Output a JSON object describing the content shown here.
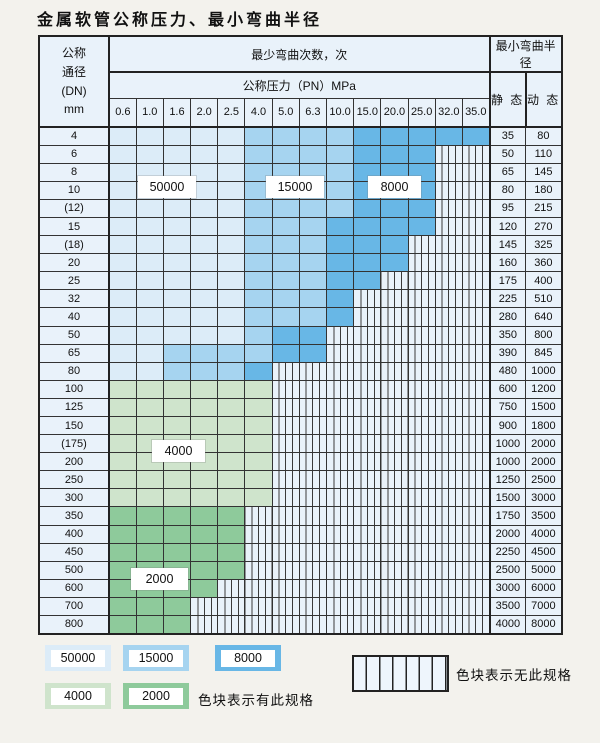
{
  "title": "金属软管公称压力、最小弯曲半径",
  "table": {
    "dn_header": "公称\n通径\n(DN)\nmm",
    "cycles_header": "最少弯曲次数，次",
    "radius_header": "最小弯曲半径",
    "pressure_header": "公称压力（PN）MPa",
    "static_header": "静 态",
    "dynamic_header": "动 态",
    "pressures": [
      "0.6",
      "1.0",
      "1.6",
      "2.0",
      "2.5",
      "4.0",
      "5.0",
      "6.3",
      "10.0",
      "15.0",
      "20.0",
      "25.0",
      "32.0",
      "35.0"
    ],
    "rows": [
      {
        "dn": "4",
        "static": "35",
        "dynamic": "80",
        "cells": [
          "b1",
          "b1",
          "b1",
          "b1",
          "b1",
          "b2",
          "b2",
          "b2",
          "b2",
          "b3",
          "b3",
          "b3",
          "b3",
          "b3"
        ]
      },
      {
        "dn": "6",
        "static": "50",
        "dynamic": "110",
        "cells": [
          "b1",
          "b1",
          "b1",
          "b1",
          "b1",
          "b2",
          "b2",
          "b2",
          "b2",
          "b3",
          "b3",
          "b3",
          "x",
          "x"
        ]
      },
      {
        "dn": "8",
        "static": "65",
        "dynamic": "145",
        "cells": [
          "b1",
          "b1",
          "b1",
          "b1",
          "b1",
          "b2",
          "b2",
          "b2",
          "b2",
          "b3",
          "b3",
          "b3",
          "x",
          "x"
        ]
      },
      {
        "dn": "10",
        "static": "80",
        "dynamic": "180",
        "cells": [
          "b1",
          "b1",
          "b1",
          "b1",
          "b1",
          "b2",
          "b2",
          "b2",
          "b2",
          "b3",
          "b3",
          "b3",
          "x",
          "x"
        ]
      },
      {
        "dn": "(12)",
        "static": "95",
        "dynamic": "215",
        "cells": [
          "b1",
          "b1",
          "b1",
          "b1",
          "b1",
          "b2",
          "b2",
          "b2",
          "b2",
          "b3",
          "b3",
          "b3",
          "x",
          "x"
        ]
      },
      {
        "dn": "15",
        "static": "120",
        "dynamic": "270",
        "cells": [
          "b1",
          "b1",
          "b1",
          "b1",
          "b1",
          "b2",
          "b2",
          "b2",
          "b3",
          "b3",
          "b3",
          "b3",
          "x",
          "x"
        ]
      },
      {
        "dn": "(18)",
        "static": "145",
        "dynamic": "325",
        "cells": [
          "b1",
          "b1",
          "b1",
          "b1",
          "b1",
          "b2",
          "b2",
          "b2",
          "b3",
          "b3",
          "b3",
          "x",
          "x",
          "x"
        ]
      },
      {
        "dn": "20",
        "static": "160",
        "dynamic": "360",
        "cells": [
          "b1",
          "b1",
          "b1",
          "b1",
          "b1",
          "b2",
          "b2",
          "b2",
          "b3",
          "b3",
          "b3",
          "x",
          "x",
          "x"
        ]
      },
      {
        "dn": "25",
        "static": "175",
        "dynamic": "400",
        "cells": [
          "b1",
          "b1",
          "b1",
          "b1",
          "b1",
          "b2",
          "b2",
          "b2",
          "b3",
          "b3",
          "x",
          "x",
          "x",
          "x"
        ]
      },
      {
        "dn": "32",
        "static": "225",
        "dynamic": "510",
        "cells": [
          "b1",
          "b1",
          "b1",
          "b1",
          "b1",
          "b2",
          "b2",
          "b2",
          "b3",
          "x",
          "x",
          "x",
          "x",
          "x"
        ]
      },
      {
        "dn": "40",
        "static": "280",
        "dynamic": "640",
        "cells": [
          "b1",
          "b1",
          "b1",
          "b1",
          "b1",
          "b2",
          "b2",
          "b2",
          "b3",
          "x",
          "x",
          "x",
          "x",
          "x"
        ]
      },
      {
        "dn": "50",
        "static": "350",
        "dynamic": "800",
        "cells": [
          "b1",
          "b1",
          "b1",
          "b1",
          "b1",
          "b2",
          "b3",
          "b3",
          "x",
          "x",
          "x",
          "x",
          "x",
          "x"
        ]
      },
      {
        "dn": "65",
        "static": "390",
        "dynamic": "845",
        "cells": [
          "b1",
          "b1",
          "b2",
          "b2",
          "b2",
          "b2",
          "b3",
          "b3",
          "x",
          "x",
          "x",
          "x",
          "x",
          "x"
        ]
      },
      {
        "dn": "80",
        "static": "480",
        "dynamic": "1000",
        "cells": [
          "b1",
          "b1",
          "b2",
          "b2",
          "b2",
          "b3",
          "x",
          "x",
          "x",
          "x",
          "x",
          "x",
          "x",
          "x"
        ]
      },
      {
        "dn": "100",
        "static": "600",
        "dynamic": "1200",
        "cells": [
          "g1",
          "g1",
          "g1",
          "g1",
          "g1",
          "g1",
          "x",
          "x",
          "x",
          "x",
          "x",
          "x",
          "x",
          "x"
        ]
      },
      {
        "dn": "125",
        "static": "750",
        "dynamic": "1500",
        "cells": [
          "g1",
          "g1",
          "g1",
          "g1",
          "g1",
          "g1",
          "x",
          "x",
          "x",
          "x",
          "x",
          "x",
          "x",
          "x"
        ]
      },
      {
        "dn": "150",
        "static": "900",
        "dynamic": "1800",
        "cells": [
          "g1",
          "g1",
          "g1",
          "g1",
          "g1",
          "g1",
          "x",
          "x",
          "x",
          "x",
          "x",
          "x",
          "x",
          "x"
        ]
      },
      {
        "dn": "(175)",
        "static": "1000",
        "dynamic": "2000",
        "cells": [
          "g1",
          "g1",
          "g1",
          "g1",
          "g1",
          "g1",
          "x",
          "x",
          "x",
          "x",
          "x",
          "x",
          "x",
          "x"
        ]
      },
      {
        "dn": "200",
        "static": "1000",
        "dynamic": "2000",
        "cells": [
          "g1",
          "g1",
          "g1",
          "g1",
          "g1",
          "g1",
          "x",
          "x",
          "x",
          "x",
          "x",
          "x",
          "x",
          "x"
        ]
      },
      {
        "dn": "250",
        "static": "1250",
        "dynamic": "2500",
        "cells": [
          "g1",
          "g1",
          "g1",
          "g1",
          "g1",
          "g1",
          "x",
          "x",
          "x",
          "x",
          "x",
          "x",
          "x",
          "x"
        ]
      },
      {
        "dn": "300",
        "static": "1500",
        "dynamic": "3000",
        "cells": [
          "g1",
          "g1",
          "g1",
          "g1",
          "g1",
          "g1",
          "x",
          "x",
          "x",
          "x",
          "x",
          "x",
          "x",
          "x"
        ]
      },
      {
        "dn": "350",
        "static": "1750",
        "dynamic": "3500",
        "cells": [
          "g2",
          "g2",
          "g2",
          "g2",
          "g2",
          "x",
          "x",
          "x",
          "x",
          "x",
          "x",
          "x",
          "x",
          "x"
        ]
      },
      {
        "dn": "400",
        "static": "2000",
        "dynamic": "4000",
        "cells": [
          "g2",
          "g2",
          "g2",
          "g2",
          "g2",
          "x",
          "x",
          "x",
          "x",
          "x",
          "x",
          "x",
          "x",
          "x"
        ]
      },
      {
        "dn": "450",
        "static": "2250",
        "dynamic": "4500",
        "cells": [
          "g2",
          "g2",
          "g2",
          "g2",
          "g2",
          "x",
          "x",
          "x",
          "x",
          "x",
          "x",
          "x",
          "x",
          "x"
        ]
      },
      {
        "dn": "500",
        "static": "2500",
        "dynamic": "5000",
        "cells": [
          "g2",
          "g2",
          "g2",
          "g2",
          "g2",
          "x",
          "x",
          "x",
          "x",
          "x",
          "x",
          "x",
          "x",
          "x"
        ]
      },
      {
        "dn": "600",
        "static": "3000",
        "dynamic": "6000",
        "cells": [
          "g2",
          "g2",
          "g2",
          "g2",
          "x",
          "x",
          "x",
          "x",
          "x",
          "x",
          "x",
          "x",
          "x",
          "x"
        ]
      },
      {
        "dn": "700",
        "static": "3500",
        "dynamic": "7000",
        "cells": [
          "g2",
          "g2",
          "g2",
          "x",
          "x",
          "x",
          "x",
          "x",
          "x",
          "x",
          "x",
          "x",
          "x",
          "x"
        ]
      },
      {
        "dn": "800",
        "static": "4000",
        "dynamic": "8000",
        "cells": [
          "g2",
          "g2",
          "g2",
          "x",
          "x",
          "x",
          "x",
          "x",
          "x",
          "x",
          "x",
          "x",
          "x",
          "x"
        ]
      }
    ]
  },
  "grid_labels": {
    "b1": "50000",
    "b2": "15000",
    "b3": "8000",
    "g1": "4000",
    "g2": "2000"
  },
  "legend": {
    "items": [
      {
        "label": "50000",
        "zone": "b1"
      },
      {
        "label": "15000",
        "zone": "b2"
      },
      {
        "label": "8000",
        "zone": "b3"
      },
      {
        "label": "4000",
        "zone": "g1"
      },
      {
        "label": "2000",
        "zone": "g2"
      }
    ],
    "has_spec_note": "色块表示有此规格",
    "no_spec_note": "色块表示无此规格"
  },
  "colors": {
    "b1": "#dcecf8",
    "b2": "#a6d4f0",
    "b3": "#68b7e6",
    "g1": "#cfe4cc",
    "g2": "#8eca9b",
    "cell_base": "#e9f2fa",
    "grid_line": "#333333"
  }
}
